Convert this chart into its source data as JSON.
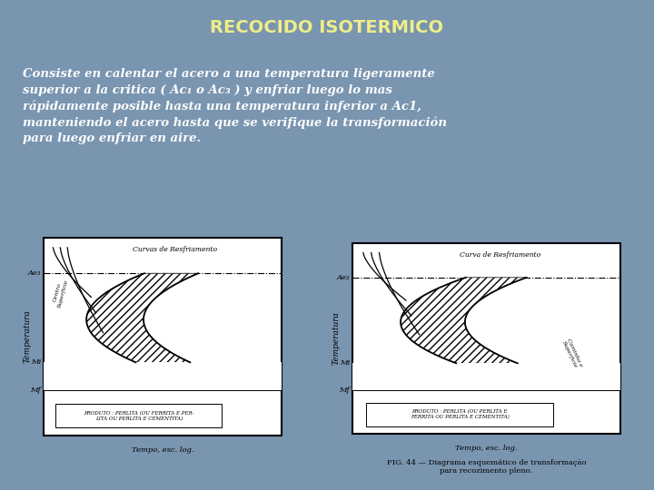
{
  "title": "RECOCIDO ISOTERMICO",
  "title_color": "#EEEE88",
  "background_color": "#7A95B0",
  "body_text": "Consiste en calentar el acero a una temperatura ligeramente\nsuperior a la critica ( Ac₁ o Ac₃ ) y enfriar luego lo mas\nrápidamente posible hasta una temperatura inferior a Ac1,\nmanteniendo el acero hasta que se verifique la transformación\npara luego enfriar en aire.",
  "fig_caption": "FIG. 44 — Diagrama esquemático de transformação\npara recozimento pleno.",
  "left_diagram": {
    "curvas_label": "Curvas de Resfriamento",
    "Ae3_label": "Ae₃",
    "Mi_label": "Mi",
    "Mf_label": "Mf",
    "ylabel": "Temperatura",
    "xlabel": "Tempo, esc. log.",
    "produto": "PRODUTO : PERLITA (OU FERRITA E PER-\nLITA OU PERLITA E CEMENTITA)",
    "caminho_label": "Centro\nSuperficie",
    "has_caminho": true,
    "caminho_side": "left"
  },
  "right_diagram": {
    "curvas_label": "Curva de Resfriamento",
    "Ae3_label": "Ae₃",
    "Mi_label": "Mi",
    "Mf_label": "Mf",
    "ylabel": "Temperatura",
    "xlabel": "Tempo, esc. log.",
    "produto": "PRODUTO : PERLITA (OU PERLITA E\nFERRITA OU PERLITA E CEMENTITA)",
    "caminho_label": "Caminho e\nSuperficie",
    "has_caminho": true,
    "caminho_side": "right"
  }
}
